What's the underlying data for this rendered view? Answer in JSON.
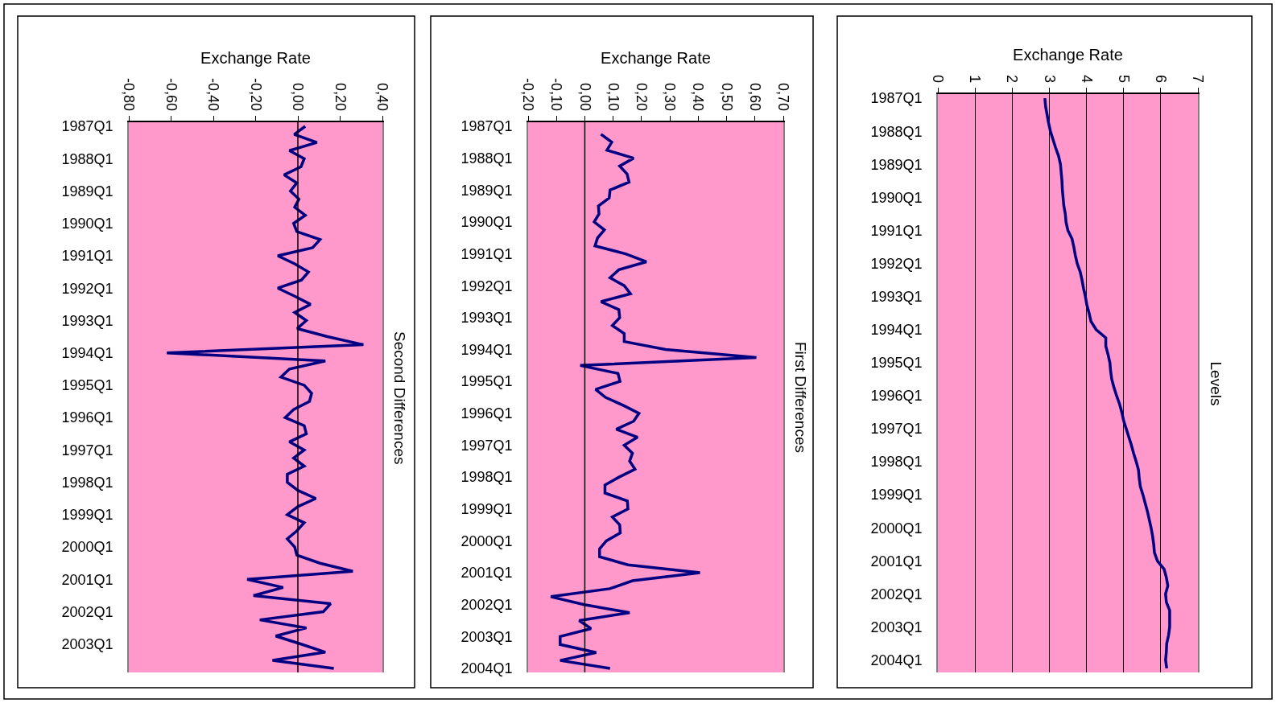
{
  "chart_data": [
    {
      "type": "line",
      "orientation": "horizontal",
      "title": "Second Differences",
      "xlabel": "Exchange Rate",
      "color": "#000080",
      "grid": false,
      "xlim": [
        -0.8,
        0.4
      ],
      "xticks": [
        {
          "value": -0.8,
          "label": "-0,80"
        },
        {
          "value": -0.6,
          "label": "-0,60"
        },
        {
          "value": -0.4,
          "label": "-0,40"
        },
        {
          "value": -0.2,
          "label": "-0,20"
        },
        {
          "value": 0,
          "label": "0,00"
        },
        {
          "value": 0.2,
          "label": "0,20"
        },
        {
          "value": 0.4,
          "label": "0,40"
        }
      ],
      "ref_lines": [
        {
          "axis": "x",
          "value": 0,
          "color": "#000000"
        }
      ],
      "categories": [
        "1987Q1",
        null,
        null,
        null,
        "1988Q1",
        null,
        null,
        null,
        "1989Q1",
        null,
        null,
        null,
        "1990Q1",
        null,
        null,
        null,
        "1991Q1",
        null,
        null,
        null,
        "1992Q1",
        null,
        null,
        null,
        "1993Q1",
        null,
        null,
        null,
        "1994Q1",
        null,
        null,
        null,
        "1995Q1",
        null,
        null,
        null,
        "1996Q1",
        null,
        null,
        null,
        "1997Q1",
        null,
        null,
        null,
        "1998Q1",
        null,
        null,
        null,
        "1999Q1",
        null,
        null,
        null,
        "2000Q1",
        null,
        null,
        null,
        "2001Q1",
        null,
        null,
        null,
        "2002Q1",
        null,
        null,
        null,
        "2003Q1",
        null,
        null,
        null
      ],
      "values": [
        0.035,
        -0.017,
        0.09,
        -0.04,
        0.03,
        0.015,
        -0.065,
        -0.005,
        -0.035,
        0.005,
        -0.015,
        0.035,
        -0.02,
        -0.005,
        0.105,
        0.07,
        -0.095,
        -0.015,
        0.05,
        0.017,
        -0.095,
        -0.015,
        0.06,
        -0.015,
        0.04,
        -0.003,
        0.14,
        0.31,
        -0.62,
        0.13,
        -0.04,
        -0.08,
        0.03,
        0.065,
        0.055,
        -0.02,
        -0.06,
        0.03,
        0.04,
        -0.04,
        0.03,
        -0.02,
        0.03,
        -0.05,
        -0.05,
        0.0,
        0.085,
        0.0,
        -0.05,
        0.03,
        -0.005,
        -0.05,
        -0.015,
        -0.005,
        0.105,
        0.26,
        -0.24,
        -0.07,
        -0.21,
        0.155,
        0.12,
        -0.18,
        0.04,
        -0.105,
        0.015,
        0.13,
        -0.12,
        0.17
      ]
    },
    {
      "type": "line",
      "orientation": "horizontal",
      "title": "First Differences",
      "xlabel": "Exchange Rate",
      "color": "#000080",
      "grid": false,
      "xlim": [
        -0.2,
        0.7
      ],
      "xticks": [
        {
          "value": -0.2,
          "label": "-0,20"
        },
        {
          "value": -0.1,
          "label": "-0,10"
        },
        {
          "value": 0,
          "label": "0,00"
        },
        {
          "value": 0.1,
          "label": "0,10"
        },
        {
          "value": 0.2,
          "label": "0,20"
        },
        {
          "value": 0.3,
          "label": "0,30"
        },
        {
          "value": 0.4,
          "label": "0,40"
        },
        {
          "value": 0.5,
          "label": "0,50"
        },
        {
          "value": 0.6,
          "label": "0,60"
        },
        {
          "value": 0.7,
          "label": "0,70"
        }
      ],
      "ref_lines": [
        {
          "axis": "x",
          "value": 0,
          "color": "#000000"
        }
      ],
      "categories": [
        "1987Q1",
        null,
        null,
        null,
        "1988Q1",
        null,
        null,
        null,
        "1989Q1",
        null,
        null,
        null,
        "1990Q1",
        null,
        null,
        null,
        "1991Q1",
        null,
        null,
        null,
        "1992Q1",
        null,
        null,
        null,
        "1993Q1",
        null,
        null,
        null,
        "1994Q1",
        null,
        null,
        null,
        "1995Q1",
        null,
        null,
        null,
        "1996Q1",
        null,
        null,
        null,
        "1997Q1",
        null,
        null,
        null,
        "1998Q1",
        null,
        null,
        null,
        "1999Q1",
        null,
        null,
        null,
        "2000Q1",
        null,
        null,
        null,
        "2001Q1",
        null,
        null,
        null,
        "2002Q1",
        null,
        null,
        null,
        "2003Q1",
        null,
        null,
        null,
        "2004Q1"
      ],
      "values": [
        null,
        0.057,
        0.095,
        0.078,
        0.172,
        0.123,
        0.149,
        0.156,
        0.089,
        0.086,
        0.048,
        0.05,
        0.033,
        0.069,
        0.045,
        0.036,
        0.144,
        0.217,
        0.12,
        0.089,
        0.139,
        0.161,
        0.057,
        0.12,
        0.123,
        0.097,
        0.139,
        0.139,
        0.285,
        0.605,
        -0.016,
        0.117,
        0.124,
        0.038,
        0.073,
        0.135,
        0.191,
        0.172,
        0.111,
        0.186,
        0.139,
        0.168,
        0.158,
        0.177,
        0.121,
        0.071,
        0.071,
        0.15,
        0.152,
        0.097,
        0.123,
        0.125,
        0.076,
        0.052,
        0.052,
        0.152,
        0.406,
        0.168,
        0.088,
        -0.12,
        -0.002,
        0.158,
        -0.02,
        0.022,
        -0.087,
        -0.087,
        0.04,
        -0.087,
        0.089
      ]
    },
    {
      "type": "line",
      "orientation": "horizontal",
      "title": "Levels",
      "xlabel": "Exchange Rate",
      "color": "#000080",
      "grid": "x",
      "xlim": [
        0,
        7
      ],
      "xticks": [
        0,
        1,
        2,
        3,
        4,
        5,
        6,
        7
      ],
      "categories": [
        "1987Q1",
        null,
        null,
        null,
        "1988Q1",
        null,
        null,
        null,
        "1989Q1",
        null,
        null,
        null,
        "1990Q1",
        null,
        null,
        null,
        "1991Q1",
        null,
        null,
        null,
        "1992Q1",
        null,
        null,
        null,
        "1993Q1",
        null,
        null,
        null,
        "1994Q1",
        null,
        null,
        null,
        "1995Q1",
        null,
        null,
        null,
        "1996Q1",
        null,
        null,
        null,
        "1997Q1",
        null,
        null,
        null,
        "1998Q1",
        null,
        null,
        null,
        "1999Q1",
        null,
        null,
        null,
        "2000Q1",
        null,
        null,
        null,
        "2001Q1",
        null,
        null,
        null,
        "2002Q1",
        null,
        null,
        null,
        "2003Q1",
        null,
        null,
        null,
        "2004Q1",
        null
      ],
      "values": [
        2.88,
        2.9,
        2.94,
        2.98,
        3.03,
        3.1,
        3.17,
        3.25,
        3.3,
        3.32,
        3.34,
        3.35,
        3.37,
        3.39,
        3.43,
        3.45,
        3.5,
        3.61,
        3.66,
        3.7,
        3.75,
        3.83,
        3.88,
        3.92,
        3.97,
        4.01,
        4.07,
        4.12,
        4.26,
        4.52,
        4.52,
        4.58,
        4.63,
        4.65,
        4.68,
        4.74,
        4.81,
        4.89,
        4.95,
        5.0,
        5.07,
        5.14,
        5.21,
        5.27,
        5.34,
        5.4,
        5.42,
        5.45,
        5.52,
        5.58,
        5.64,
        5.69,
        5.74,
        5.78,
        5.81,
        5.83,
        5.91,
        6.09,
        6.15,
        6.19,
        6.13,
        6.15,
        6.24,
        6.24,
        6.24,
        6.21,
        6.16,
        6.15,
        6.13,
        6.16
      ]
    }
  ]
}
